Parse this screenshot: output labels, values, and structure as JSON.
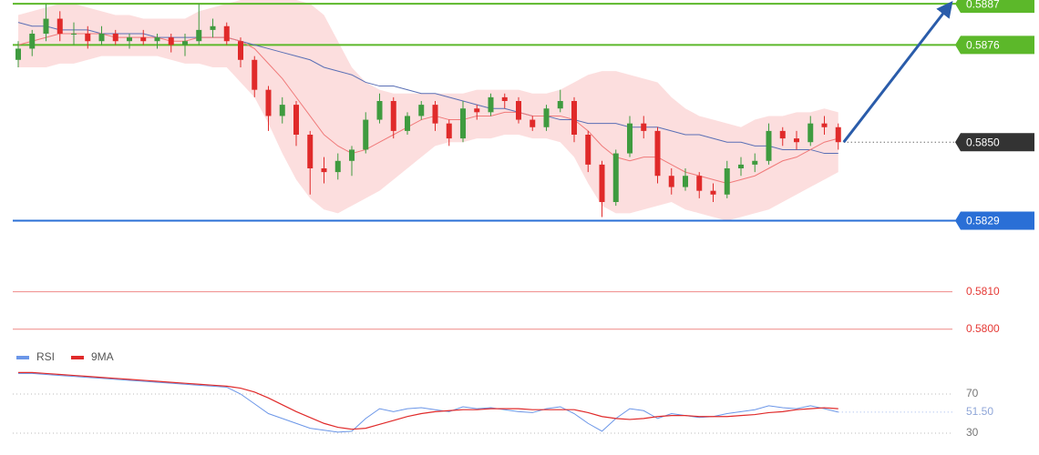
{
  "chart_data": [
    {
      "type": "candlestick",
      "ylim": [
        0.5798,
        0.5888
      ],
      "up_color": "#3f9b3f",
      "down_color": "#e02a2a",
      "ohlc": [
        [
          0.5872,
          0.5877,
          0.587,
          0.5875
        ],
        [
          0.5875,
          0.588,
          0.5873,
          0.5879
        ],
        [
          0.5879,
          0.5887,
          0.5877,
          0.5883
        ],
        [
          0.5883,
          0.5885,
          0.5877,
          0.5879
        ],
        [
          0.5879,
          0.5882,
          0.5876,
          0.5879
        ],
        [
          0.5879,
          0.5881,
          0.5875,
          0.5877
        ],
        [
          0.5877,
          0.5881,
          0.5876,
          0.5879
        ],
        [
          0.5879,
          0.588,
          0.5876,
          0.5877
        ],
        [
          0.5877,
          0.5879,
          0.5875,
          0.5878
        ],
        [
          0.5878,
          0.588,
          0.5876,
          0.5877
        ],
        [
          0.5877,
          0.5879,
          0.5875,
          0.5878
        ],
        [
          0.5878,
          0.5879,
          0.5874,
          0.5876
        ],
        [
          0.5876,
          0.5879,
          0.5873,
          0.5877
        ],
        [
          0.5877,
          0.5887,
          0.5876,
          0.588
        ],
        [
          0.588,
          0.5883,
          0.5878,
          0.5881
        ],
        [
          0.5881,
          0.5882,
          0.5876,
          0.5877
        ],
        [
          0.5877,
          0.5878,
          0.587,
          0.5872
        ],
        [
          0.5872,
          0.5873,
          0.5862,
          0.5864
        ],
        [
          0.5864,
          0.5865,
          0.5853,
          0.5857
        ],
        [
          0.5857,
          0.5862,
          0.5855,
          0.586
        ],
        [
          0.586,
          0.5861,
          0.5849,
          0.5852
        ],
        [
          0.5852,
          0.5853,
          0.5836,
          0.5843
        ],
        [
          0.5843,
          0.5846,
          0.5839,
          0.5842
        ],
        [
          0.5842,
          0.5847,
          0.584,
          0.5845
        ],
        [
          0.5845,
          0.5849,
          0.5841,
          0.5848
        ],
        [
          0.5848,
          0.5858,
          0.5847,
          0.5856
        ],
        [
          0.5856,
          0.5863,
          0.5855,
          0.5861
        ],
        [
          0.5861,
          0.5862,
          0.5851,
          0.5853
        ],
        [
          0.5853,
          0.5858,
          0.5852,
          0.5857
        ],
        [
          0.5857,
          0.5861,
          0.5856,
          0.586
        ],
        [
          0.586,
          0.5861,
          0.5853,
          0.5855
        ],
        [
          0.5855,
          0.5856,
          0.5849,
          0.5851
        ],
        [
          0.5851,
          0.5861,
          0.585,
          0.5859
        ],
        [
          0.5859,
          0.586,
          0.5856,
          0.5858
        ],
        [
          0.5858,
          0.5863,
          0.5857,
          0.5862
        ],
        [
          0.5862,
          0.5863,
          0.5859,
          0.5861
        ],
        [
          0.5861,
          0.5862,
          0.5855,
          0.5856
        ],
        [
          0.5856,
          0.5857,
          0.5853,
          0.5854
        ],
        [
          0.5854,
          0.586,
          0.5853,
          0.5859
        ],
        [
          0.5859,
          0.5864,
          0.5858,
          0.5861
        ],
        [
          0.5861,
          0.5862,
          0.585,
          0.5852
        ],
        [
          0.5852,
          0.5853,
          0.5842,
          0.5844
        ],
        [
          0.5844,
          0.5845,
          0.583,
          0.5834
        ],
        [
          0.5834,
          0.5848,
          0.5833,
          0.5847
        ],
        [
          0.5847,
          0.5857,
          0.5846,
          0.5855
        ],
        [
          0.5855,
          0.5857,
          0.5851,
          0.5853
        ],
        [
          0.5853,
          0.5854,
          0.5839,
          0.5841
        ],
        [
          0.5841,
          0.5843,
          0.5836,
          0.5838
        ],
        [
          0.5838,
          0.5843,
          0.5837,
          0.5841
        ],
        [
          0.5841,
          0.5842,
          0.5835,
          0.5837
        ],
        [
          0.5837,
          0.5839,
          0.5834,
          0.5836
        ],
        [
          0.5836,
          0.5845,
          0.5835,
          0.5843
        ],
        [
          0.5843,
          0.5846,
          0.5841,
          0.5844
        ],
        [
          0.5844,
          0.5847,
          0.5842,
          0.5845
        ],
        [
          0.5845,
          0.5855,
          0.5844,
          0.5853
        ],
        [
          0.5853,
          0.5854,
          0.5849,
          0.5851
        ],
        [
          0.5851,
          0.5853,
          0.5848,
          0.585
        ],
        [
          0.585,
          0.5857,
          0.5849,
          0.5855
        ],
        [
          0.5855,
          0.5857,
          0.5852,
          0.5854
        ],
        [
          0.5854,
          0.5855,
          0.5848,
          0.585
        ]
      ],
      "band": {
        "color": "#fbd3d3",
        "upper": [
          0.5884,
          0.5885,
          0.5886,
          0.5887,
          0.5887,
          0.5886,
          0.5885,
          0.5884,
          0.5884,
          0.5883,
          0.5883,
          0.5883,
          0.5883,
          0.5885,
          0.5886,
          0.5887,
          0.5888,
          0.5888,
          0.5888,
          0.5888,
          0.5888,
          0.5887,
          0.5884,
          0.5877,
          0.587,
          0.5866,
          0.5864,
          0.5863,
          0.5863,
          0.5863,
          0.5863,
          0.5863,
          0.5863,
          0.5864,
          0.5864,
          0.5864,
          0.5864,
          0.5863,
          0.5863,
          0.5864,
          0.5866,
          0.5868,
          0.5869,
          0.5869,
          0.5868,
          0.5867,
          0.5866,
          0.5862,
          0.5859,
          0.5857,
          0.5856,
          0.5855,
          0.5854,
          0.5856,
          0.5857,
          0.5857,
          0.5858,
          0.5858,
          0.5859,
          0.5858
        ],
        "lower": [
          0.587,
          0.587,
          0.587,
          0.5871,
          0.5871,
          0.5872,
          0.5873,
          0.5873,
          0.5873,
          0.5873,
          0.5873,
          0.5872,
          0.5871,
          0.5871,
          0.587,
          0.587,
          0.5866,
          0.5862,
          0.5855,
          0.5847,
          0.584,
          0.5835,
          0.5832,
          0.5831,
          0.5833,
          0.5835,
          0.5837,
          0.584,
          0.5843,
          0.5846,
          0.5849,
          0.585,
          0.585,
          0.5851,
          0.5851,
          0.5852,
          0.5852,
          0.5851,
          0.5851,
          0.585,
          0.5846,
          0.5839,
          0.5833,
          0.5831,
          0.5831,
          0.5832,
          0.5833,
          0.5834,
          0.5832,
          0.5831,
          0.583,
          0.5829,
          0.583,
          0.5831,
          0.5832,
          0.5834,
          0.5836,
          0.5838,
          0.584,
          0.5842
        ]
      },
      "overlays": [
        {
          "color": "#5a6fb5",
          "values": [
            0.5882,
            0.5881,
            0.5881,
            0.588,
            0.588,
            0.588,
            0.5879,
            0.5879,
            0.5879,
            0.5879,
            0.5878,
            0.5878,
            0.5878,
            0.5878,
            0.5878,
            0.5878,
            0.5877,
            0.5876,
            0.5875,
            0.5874,
            0.5873,
            0.5872,
            0.587,
            0.5869,
            0.5868,
            0.5866,
            0.5865,
            0.5865,
            0.5864,
            0.5863,
            0.5863,
            0.5862,
            0.5861,
            0.586,
            0.5859,
            0.5859,
            0.5858,
            0.5857,
            0.5857,
            0.5856,
            0.5856,
            0.5855,
            0.5855,
            0.5855,
            0.5854,
            0.5854,
            0.5854,
            0.5853,
            0.5852,
            0.5852,
            0.5851,
            0.585,
            0.585,
            0.5849,
            0.5849,
            0.5848,
            0.5848,
            0.5848,
            0.5847,
            0.5847
          ]
        },
        {
          "color": "#f07a7a",
          "values": [
            0.5876,
            0.5877,
            0.5878,
            0.5879,
            0.5879,
            0.5879,
            0.5879,
            0.5878,
            0.5878,
            0.5878,
            0.5878,
            0.5877,
            0.5877,
            0.5878,
            0.5878,
            0.5878,
            0.5877,
            0.5875,
            0.5871,
            0.5867,
            0.5862,
            0.5857,
            0.5852,
            0.5849,
            0.5847,
            0.5848,
            0.585,
            0.5852,
            0.5854,
            0.5856,
            0.5857,
            0.5856,
            0.5856,
            0.5857,
            0.5857,
            0.5858,
            0.5858,
            0.5857,
            0.5857,
            0.5857,
            0.5856,
            0.5853,
            0.5849,
            0.5846,
            0.5845,
            0.5846,
            0.5846,
            0.5844,
            0.5842,
            0.5841,
            0.584,
            0.5839,
            0.584,
            0.5841,
            0.5843,
            0.5845,
            0.5846,
            0.5848,
            0.585,
            0.5851
          ]
        }
      ],
      "levels": [
        {
          "value": 0.5887,
          "color": "#5cb82a",
          "style": "box"
        },
        {
          "value": 0.5876,
          "color": "#5cb82a",
          "style": "box"
        },
        {
          "value": 0.585,
          "label": "0.5850",
          "color": "#333333",
          "style": "dotted"
        },
        {
          "value": 0.5829,
          "color": "#2a6fd6",
          "style": "box"
        },
        {
          "value": 0.581,
          "label": "0.5810",
          "color": "#e53935",
          "style": "text"
        },
        {
          "value": 0.58,
          "label": "0.5800",
          "color": "#e53935",
          "style": "text"
        }
      ]
    },
    {
      "type": "line",
      "ylim": [
        10,
        110
      ],
      "yticks": [
        30,
        70
      ],
      "last": {
        "value": 51.5,
        "label": "51.50"
      },
      "series": [
        {
          "name": "RSI",
          "color": "#6b96e8",
          "values": [
            91,
            91,
            90,
            89,
            88,
            87,
            86,
            85,
            84,
            83,
            82,
            81,
            80,
            79,
            78,
            77,
            70,
            60,
            50,
            45,
            40,
            35,
            33,
            31,
            32,
            45,
            55,
            52,
            55,
            56,
            54,
            52,
            57,
            55,
            56,
            54,
            52,
            51,
            55,
            57,
            50,
            40,
            32,
            45,
            55,
            53,
            45,
            50,
            48,
            46,
            47,
            50,
            52,
            54,
            58,
            56,
            55,
            58,
            55,
            51.5
          ]
        },
        {
          "name": "9MA",
          "color": "#e02a2a",
          "values": [
            92,
            92,
            91,
            90,
            89,
            88,
            87,
            86,
            85,
            84,
            83,
            82,
            81,
            80,
            79,
            78,
            76,
            72,
            66,
            59,
            52,
            46,
            40,
            36,
            34,
            35,
            39,
            43,
            47,
            50,
            52,
            53,
            54,
            54,
            55,
            55,
            55,
            54,
            54,
            54,
            54,
            51,
            47,
            45,
            44,
            45,
            47,
            48,
            48,
            47,
            47,
            47,
            48,
            49,
            51,
            52,
            54,
            55,
            56,
            55
          ]
        }
      ]
    }
  ]
}
